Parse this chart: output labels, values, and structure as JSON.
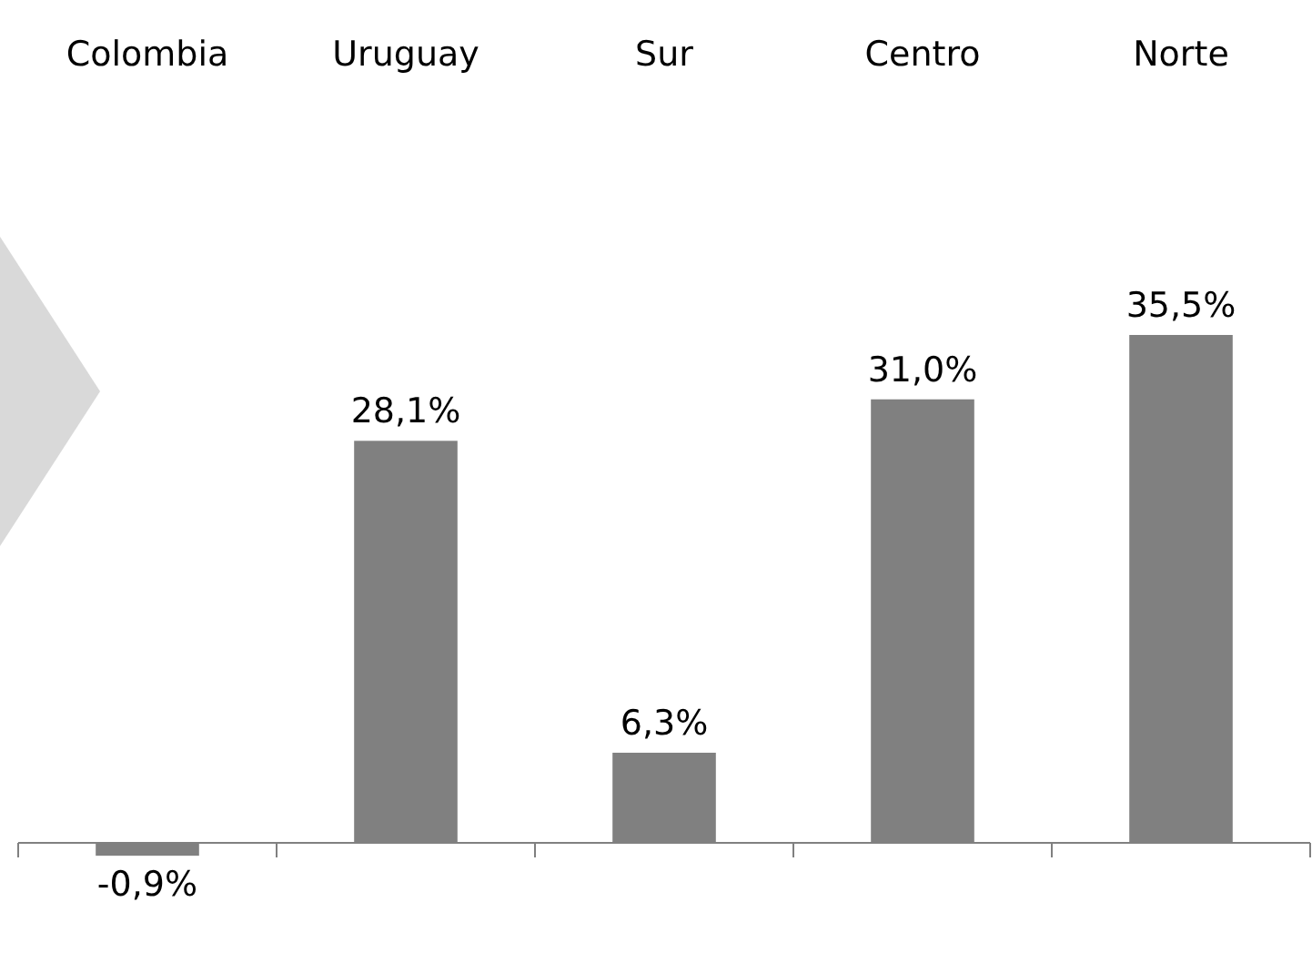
{
  "chart_data": {
    "type": "bar",
    "categories": [
      "Colombia",
      "Uruguay",
      "Sur",
      "Centro",
      "Norte"
    ],
    "values": [
      -0.9,
      28.1,
      6.3,
      31.0,
      35.5
    ],
    "value_labels": [
      "-0,9%",
      "28,1%",
      "6,3%",
      "31,0%",
      "35,5%"
    ],
    "color": "#808080"
  }
}
